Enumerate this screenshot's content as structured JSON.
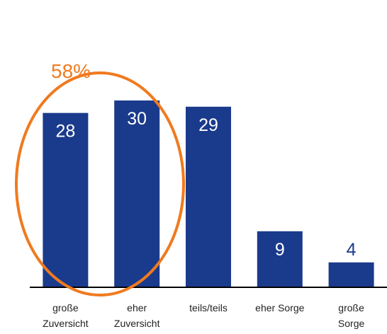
{
  "chart_data": {
    "type": "bar",
    "categories": [
      "große\nZuversicht",
      "eher\nZuversicht",
      "teils/teils",
      "eher Sorge",
      "große\nSorge"
    ],
    "values": [
      28,
      30,
      29,
      9,
      4
    ],
    "color": "#1a3a8c",
    "ylim": [
      0,
      30
    ],
    "annotation": {
      "text": "58%",
      "color": "#f07a1e"
    }
  }
}
